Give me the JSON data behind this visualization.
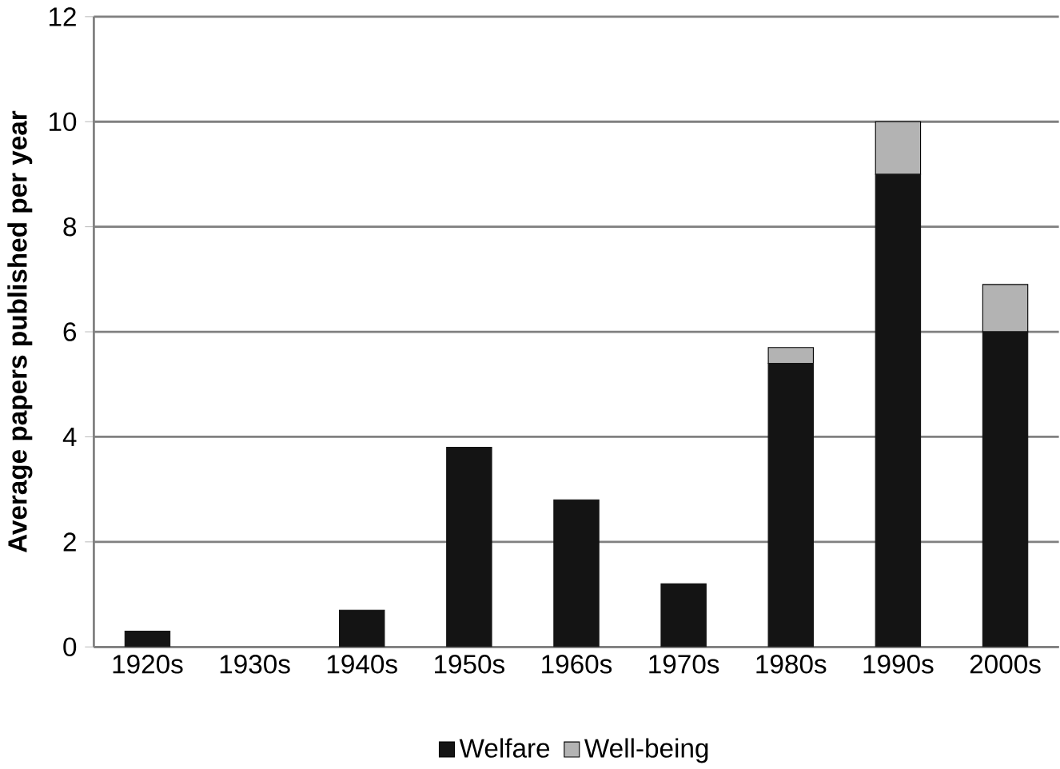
{
  "chart_data": {
    "type": "bar",
    "stacked": true,
    "ylabel": "Average papers published per year",
    "categories": [
      "1920s",
      "1930s",
      "1940s",
      "1950s",
      "1960s",
      "1970s",
      "1980s",
      "1990s",
      "2000s"
    ],
    "series": [
      {
        "name": "Welfare",
        "color": "#141414",
        "values": [
          0.3,
          0,
          0.7,
          3.8,
          2.8,
          1.2,
          5.4,
          9,
          6
        ]
      },
      {
        "name": "Well-being",
        "color": "#b3b3b3",
        "values": [
          0,
          0,
          0,
          0,
          0,
          0,
          0.3,
          1,
          0.9
        ]
      }
    ],
    "ylim": [
      0,
      12
    ],
    "yticks": [
      0,
      2,
      4,
      6,
      8,
      10,
      12
    ],
    "grid": "y",
    "legend": "bottom"
  }
}
